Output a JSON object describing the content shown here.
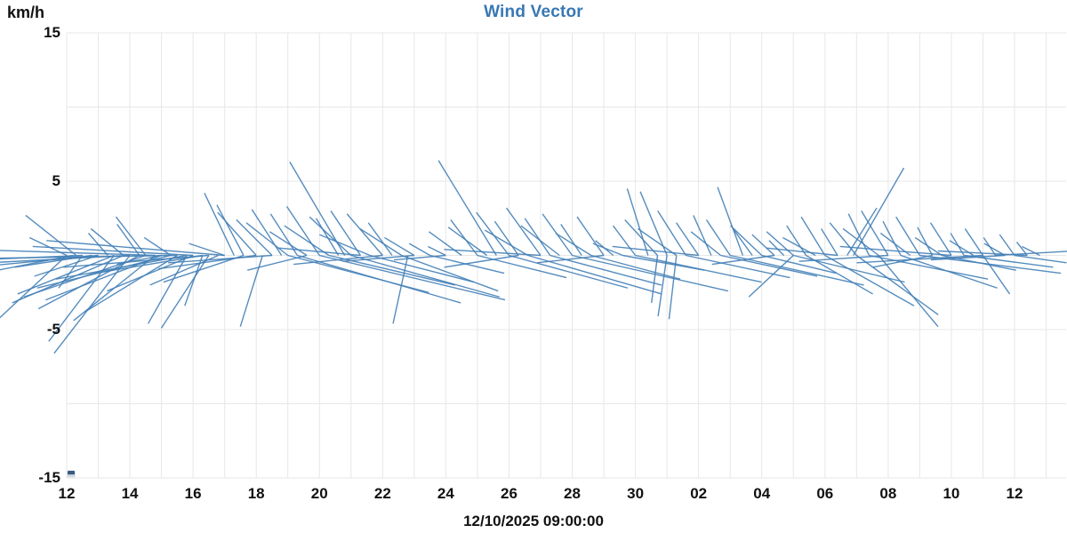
{
  "header": {
    "title": "Wind Vector"
  },
  "axes": {
    "y_unit": "km/h",
    "y_ticks": [
      {
        "label": "15",
        "value": 15
      },
      {
        "label": "5",
        "value": 5
      },
      {
        "label": "-5",
        "value": -5
      },
      {
        "label": "-15",
        "value": -15
      }
    ],
    "x_ticks": [
      "12",
      "14",
      "16",
      "18",
      "20",
      "22",
      "24",
      "26",
      "28",
      "30",
      "02",
      "04",
      "06",
      "08",
      "10",
      "12"
    ],
    "caption": "12/10/2025 09:00:00"
  },
  "colors": {
    "title": "#3878b4",
    "vector": "#4380b7",
    "grid": "#e7e7e7",
    "label": "#111111"
  },
  "chart_data": {
    "type": "vector",
    "title": "Wind Vector",
    "y_unit": "km/h",
    "ylim": [
      -15,
      15
    ],
    "y_gridline_step": 5,
    "y_labeled_ticks": [
      15,
      5,
      -5,
      -15
    ],
    "x_tick_labels_hours": [
      "12",
      "14",
      "16",
      "18",
      "20",
      "22",
      "24",
      "26",
      "28",
      "30",
      "02",
      "04",
      "06",
      "08",
      "10",
      "12"
    ],
    "x_caption": "12/10/2025 09:00:00",
    "grid": true,
    "legend": "none",
    "vectors_format": "[axis_hour_since_12, u_kmh, v_kmh] drawn from (t,0) to (t+u, v)",
    "vectors": [
      [
        12.0,
        -4.5,
        -4.2
      ],
      [
        12.0,
        -2.5,
        1.2
      ],
      [
        12.2,
        -7.6,
        -1.5
      ],
      [
        12.3,
        -3.4,
        2.7
      ],
      [
        12.5,
        -9.5,
        -0.4
      ],
      [
        12.5,
        -1.6,
        -2.2
      ],
      [
        12.8,
        -5.2,
        -0.8
      ],
      [
        13.0,
        -4.3,
        -1.4
      ],
      [
        13.0,
        -10.5,
        -1.0
      ],
      [
        13.3,
        -1.3,
        1.5
      ],
      [
        13.5,
        -4.4,
        -5.8
      ],
      [
        13.5,
        -6.5,
        -2.6
      ],
      [
        13.8,
        -2.2,
        1.8
      ],
      [
        13.8,
        -7.5,
        -3.2
      ],
      [
        14.0,
        -5.1,
        -6.6
      ],
      [
        14.0,
        -11.5,
        -0.6
      ],
      [
        14.3,
        -1.5,
        2.1
      ],
      [
        14.3,
        -6.8,
        -3.6
      ],
      [
        14.5,
        -2.0,
        2.6
      ],
      [
        14.5,
        -8.2,
        -2.8
      ],
      [
        14.8,
        -5.5,
        -4.4
      ],
      [
        14.8,
        -12.5,
        0.4
      ],
      [
        15.0,
        -7.8,
        -3.0
      ],
      [
        15.0,
        -3.0,
        -0.6
      ],
      [
        15.3,
        -9.0,
        -2.2
      ],
      [
        15.3,
        -1.8,
        1.2
      ],
      [
        15.5,
        -6.2,
        -3.8
      ],
      [
        15.5,
        -13.0,
        -0.2
      ],
      [
        15.8,
        -8.8,
        -1.6
      ],
      [
        15.8,
        -2.6,
        -4.6
      ],
      [
        16.0,
        -5.8,
        -2.4
      ],
      [
        16.0,
        -10.8,
        0.6
      ],
      [
        16.3,
        -1.2,
        -3.4
      ],
      [
        16.3,
        -7.2,
        -1.2
      ],
      [
        16.5,
        -3.2,
        -4.9
      ],
      [
        16.5,
        -9.8,
        -0.8
      ],
      [
        16.8,
        -4.6,
        -2.0
      ],
      [
        17.0,
        -12.0,
        1.0
      ],
      [
        17.0,
        -2.4,
        0.8
      ],
      [
        17.3,
        -2.0,
        4.2
      ],
      [
        17.6,
        -1.8,
        3.4
      ],
      [
        17.6,
        -5.4,
        -1.8
      ],
      [
        18.0,
        -2.6,
        2.9
      ],
      [
        18.0,
        -6.6,
        -0.9
      ],
      [
        18.2,
        -1.5,
        -4.8
      ],
      [
        18.5,
        -2.4,
        2.4
      ],
      [
        18.5,
        -7.0,
        -0.5
      ],
      [
        18.8,
        -2.0,
        3.1
      ],
      [
        19.0,
        -2.8,
        2.2
      ],
      [
        19.0,
        9.5,
        -2.5
      ],
      [
        19.3,
        -1.8,
        2.8
      ],
      [
        19.3,
        11.0,
        -3.2
      ],
      [
        19.6,
        -2.5,
        1.6
      ],
      [
        19.6,
        -4.0,
        -1.0
      ],
      [
        20.0,
        -2.2,
        3.3
      ],
      [
        20.0,
        12.5,
        -3.0
      ],
      [
        20.3,
        -3.0,
        2.0
      ],
      [
        20.3,
        8.5,
        -2.0
      ],
      [
        20.6,
        -1.5,
        2.5
      ],
      [
        20.8,
        -3.7,
        6.3
      ],
      [
        21.0,
        -2.8,
        2.6
      ],
      [
        21.0,
        10.0,
        -2.8
      ],
      [
        21.3,
        -2.0,
        3.0
      ],
      [
        21.3,
        -5.5,
        0.5
      ],
      [
        21.6,
        -3.4,
        1.4
      ],
      [
        21.6,
        7.0,
        -1.8
      ],
      [
        22.0,
        -2.4,
        2.8
      ],
      [
        22.0,
        -6.0,
        -0.6
      ],
      [
        22.3,
        -1.6,
        2.2
      ],
      [
        22.6,
        -2.8,
        1.8
      ],
      [
        22.6,
        6.5,
        -2.4
      ],
      [
        22.8,
        -1.0,
        -4.6
      ],
      [
        23.0,
        -2.0,
        1.2
      ],
      [
        23.0,
        -4.8,
        -0.4
      ],
      [
        23.5,
        -1.4,
        0.8
      ],
      [
        23.5,
        5.0,
        -1.2
      ],
      [
        24.0,
        -1.2,
        0.6
      ],
      [
        24.0,
        -3.5,
        -0.3
      ],
      [
        24.5,
        -2.2,
        1.6
      ],
      [
        25.0,
        -1.8,
        2.4
      ],
      [
        25.0,
        6.0,
        -1.5
      ],
      [
        25.3,
        -2.6,
        1.9
      ],
      [
        25.6,
        -3.9,
        6.4
      ],
      [
        26.0,
        -2.2,
        2.9
      ],
      [
        26.0,
        8.0,
        -2.2
      ],
      [
        26.3,
        -1.6,
        2.3
      ],
      [
        26.3,
        -5.0,
        -0.8
      ],
      [
        26.6,
        -2.9,
        1.7
      ],
      [
        26.6,
        9.0,
        -2.6
      ],
      [
        27.0,
        -2.3,
        3.2
      ],
      [
        27.0,
        -6.5,
        0.4
      ],
      [
        27.3,
        -1.7,
        2.5
      ],
      [
        27.3,
        7.5,
        -2.0
      ],
      [
        27.6,
        -2.6,
        2.0
      ],
      [
        28.0,
        -2.0,
        2.8
      ],
      [
        28.0,
        10.5,
        -2.4
      ],
      [
        28.3,
        -1.4,
        2.1
      ],
      [
        28.6,
        -2.4,
        1.5
      ],
      [
        28.6,
        6.0,
        -1.6
      ],
      [
        29.0,
        -1.8,
        2.6
      ],
      [
        29.0,
        -4.5,
        -0.5
      ],
      [
        29.3,
        -1.2,
        1.0
      ],
      [
        29.6,
        -2.0,
        0.8
      ],
      [
        29.6,
        5.5,
        -1.0
      ],
      [
        30.0,
        -1.5,
        2.0
      ],
      [
        30.0,
        8.5,
        -1.8
      ],
      [
        30.4,
        -1.4,
        4.5
      ],
      [
        30.7,
        -0.4,
        -3.2
      ],
      [
        30.7,
        -2.2,
        2.4
      ],
      [
        31.0,
        -1.8,
        4.3
      ],
      [
        31.0,
        -0.6,
        -4.1
      ],
      [
        31.3,
        -0.5,
        -4.3
      ],
      [
        31.3,
        -2.6,
        1.8
      ],
      [
        31.6,
        -1.9,
        3.0
      ],
      [
        31.6,
        7.0,
        -1.5
      ],
      [
        32.0,
        -1.5,
        2.2
      ],
      [
        32.0,
        -5.8,
        0.6
      ],
      [
        32.4,
        -1.2,
        2.7
      ],
      [
        32.7,
        -2.0,
        1.6
      ],
      [
        32.7,
        6.5,
        -1.4
      ],
      [
        33.0,
        -1.6,
        2.4
      ],
      [
        33.0,
        9.0,
        -2.0
      ],
      [
        33.4,
        -1.7,
        4.6
      ],
      [
        33.7,
        -1.3,
        1.8
      ],
      [
        34.0,
        -2.1,
        2.0
      ],
      [
        34.0,
        5.0,
        -1.2
      ],
      [
        34.4,
        -1.5,
        1.4
      ],
      [
        34.4,
        -4.2,
        -0.6
      ],
      [
        34.7,
        -1.0,
        1.0
      ],
      [
        35.0,
        -1.8,
        1.6
      ],
      [
        35.0,
        7.5,
        -1.8
      ],
      [
        35.0,
        -3.0,
        -2.8
      ],
      [
        35.4,
        -1.3,
        2.0
      ],
      [
        35.4,
        4.5,
        -2.6
      ],
      [
        35.7,
        -2.2,
        1.2
      ],
      [
        36.0,
        -1.6,
        2.6
      ],
      [
        36.0,
        6.0,
        -3.4
      ],
      [
        36.4,
        -1.1,
        1.8
      ],
      [
        36.4,
        -4.8,
        0.5
      ],
      [
        36.7,
        2.0,
        3.2
      ],
      [
        36.9,
        3.4,
        5.9
      ],
      [
        37.0,
        -1.8,
        2.2
      ],
      [
        37.0,
        5.5,
        -4.0
      ],
      [
        37.4,
        -1.4,
        2.8
      ],
      [
        37.4,
        8.0,
        -1.6
      ],
      [
        37.7,
        -2.4,
        1.8
      ],
      [
        37.7,
        4.0,
        -4.8
      ],
      [
        38.0,
        -1.8,
        3.0
      ],
      [
        38.0,
        -6.0,
        -0.4
      ],
      [
        38.4,
        -1.2,
        2.3
      ],
      [
        38.4,
        6.5,
        -2.2
      ],
      [
        38.7,
        -2.0,
        1.5
      ],
      [
        39.0,
        -1.6,
        2.6
      ],
      [
        39.0,
        9.5,
        -1.2
      ],
      [
        39.4,
        -1.0,
        1.9
      ],
      [
        39.4,
        -4.0,
        -0.8
      ],
      [
        39.7,
        -1.8,
        1.2
      ],
      [
        39.7,
        5.0,
        -1.0
      ],
      [
        40.0,
        -1.4,
        2.2
      ],
      [
        40.0,
        -7.5,
        0.6
      ],
      [
        40.4,
        -0.9,
        1.5
      ],
      [
        40.4,
        6.0,
        -0.8
      ],
      [
        40.7,
        -1.6,
        1.0
      ],
      [
        41.0,
        -1.2,
        1.8
      ],
      [
        41.0,
        -8.5,
        -0.5
      ],
      [
        41.0,
        1.8,
        -2.6
      ],
      [
        41.4,
        -0.8,
        1.2
      ],
      [
        41.4,
        7.0,
        0.4
      ],
      [
        41.7,
        -1.4,
        0.8
      ],
      [
        41.7,
        -5.0,
        -0.3
      ],
      [
        42.0,
        -1.0,
        1.4
      ],
      [
        42.0,
        3.5,
        -0.5
      ],
      [
        42.4,
        -0.7,
        0.9
      ],
      [
        42.4,
        -6.0,
        0.3
      ],
      [
        42.8,
        -1.2,
        0.6
      ]
    ]
  }
}
